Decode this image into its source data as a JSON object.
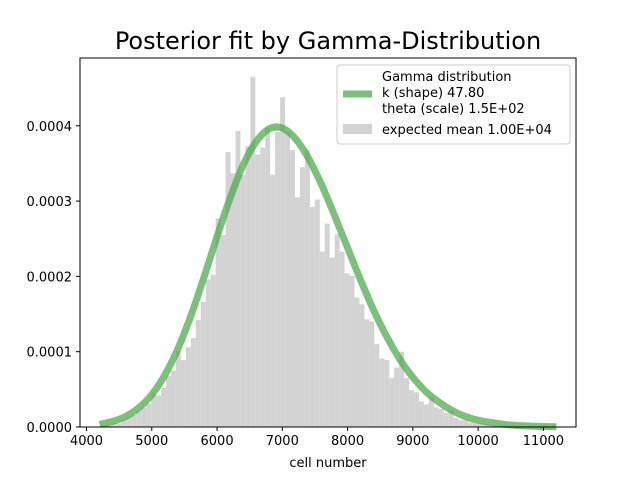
{
  "chart_data": {
    "type": "bar",
    "title": "Posterior fit by Gamma-Distribution",
    "xlabel": "cell number",
    "ylabel": "",
    "xlim": [
      3900,
      11500
    ],
    "ylim": [
      0,
      0.00049
    ],
    "xticks": [
      4000,
      5000,
      6000,
      7000,
      8000,
      9000,
      10000,
      11000
    ],
    "yticks": [
      0.0,
      0.0001,
      0.0002,
      0.0003,
      0.0004
    ],
    "ytick_labels": [
      "0.0000",
      "0.0001",
      "0.0002",
      "0.0003",
      "0.0004"
    ],
    "grid": false,
    "legend_position": "top-right",
    "histogram": {
      "name": "expected mean 1.00E+04",
      "color": "#d3d3d3",
      "bin_width": 76,
      "x": [
        4230,
        4306,
        4382,
        4458,
        4534,
        4610,
        4686,
        4762,
        4838,
        4914,
        4990,
        5066,
        5142,
        5218,
        5294,
        5370,
        5446,
        5522,
        5598,
        5674,
        5750,
        5826,
        5902,
        5978,
        6054,
        6130,
        6206,
        6282,
        6358,
        6434,
        6510,
        6586,
        6662,
        6738,
        6814,
        6890,
        6966,
        7042,
        7118,
        7194,
        7270,
        7346,
        7422,
        7498,
        7574,
        7650,
        7726,
        7802,
        7878,
        7954,
        8030,
        8106,
        8182,
        8258,
        8334,
        8410,
        8486,
        8562,
        8638,
        8714,
        8790,
        8866,
        8942,
        9018,
        9094,
        9170,
        9246,
        9322,
        9398,
        9474,
        9550,
        9626,
        9702,
        9778,
        9854,
        9930,
        10006,
        10082,
        10158,
        10234,
        10310,
        10386,
        10462,
        10538,
        10614,
        10690,
        10766,
        10842,
        10918,
        10994,
        11070,
        11146
      ],
      "values": [
        2e-06,
        2e-06,
        5e-06,
        5e-06,
        9e-06,
        1.3e-05,
        1.6e-05,
        2.1e-05,
        2.6e-05,
        3.1e-05,
        4.5e-05,
        4.2e-05,
        5.2e-05,
        6.8e-05,
        7.5e-05,
        0.000101,
        8.9e-05,
        0.000106,
        0.000118,
        0.000142,
        0.000166,
        0.000196,
        0.000202,
        0.000277,
        0.000255,
        0.000365,
        0.000337,
        0.000393,
        0.000335,
        0.000373,
        0.000465,
        0.000362,
        0.000371,
        0.000397,
        0.000335,
        0.000392,
        0.000438,
        0.000392,
        0.000368,
        0.000305,
        0.000345,
        0.000368,
        0.000292,
        0.000302,
        0.000233,
        0.00027,
        0.000225,
        0.000256,
        0.000233,
        0.000204,
        0.000201,
        0.000172,
        0.000163,
        0.000143,
        0.00014,
        0.00011,
        9.1e-05,
        8.9e-05,
        6.5e-05,
        7.9e-05,
        0.0001,
        6.5e-05,
        4.9e-05,
        4.6e-05,
        3.4e-05,
        3e-05,
        4e-05,
        2.6e-05,
        2.4e-05,
        1.9e-05,
        2.2e-05,
        1.2e-05,
        9e-06,
        9e-06,
        6e-06,
        5e-06,
        5e-06,
        4e-06,
        3e-06,
        2e-06,
        2e-06,
        2e-06,
        1e-06,
        1e-06,
        1e-06,
        1e-06,
        1e-06,
        0.0,
        0.0,
        1e-06,
        0.0,
        0.0
      ]
    },
    "series": [
      {
        "name": "Gamma distribution",
        "legend_lines": [
          "Gamma distribution",
          "k (shape) 47.80",
          "theta (scale) 1.5E+02"
        ],
        "color": "#4ca64c",
        "x": [
          4200,
          4400,
          4600,
          4800,
          5000,
          5200,
          5400,
          5600,
          5800,
          6000,
          6200,
          6400,
          6600,
          6800,
          7000,
          7200,
          7400,
          7600,
          7800,
          8000,
          8200,
          8400,
          8600,
          8800,
          9000,
          9200,
          9400,
          9600,
          9800,
          10000,
          10200,
          10400,
          10600,
          10800,
          11000,
          11200
        ],
        "values": [
          3.5e-06,
          7.5e-06,
          1.4e-05,
          2.55e-05,
          4.3e-05,
          6.9e-05,
          0.000104,
          0.000148,
          0.000199,
          0.000253,
          0.000304,
          0.000348,
          0.000379,
          0.000396,
          0.000397,
          0.000383,
          0.000357,
          0.000322,
          0.000281,
          0.000238,
          0.000195,
          0.000155,
          0.00012,
          9e-05,
          6.6e-05,
          4.7e-05,
          3.3e-05,
          2.2e-05,
          1.4e-05,
          9e-06,
          6e-06,
          3.5e-06,
          2e-06,
          1.2e-06,
          7e-07,
          4e-07
        ]
      }
    ]
  }
}
